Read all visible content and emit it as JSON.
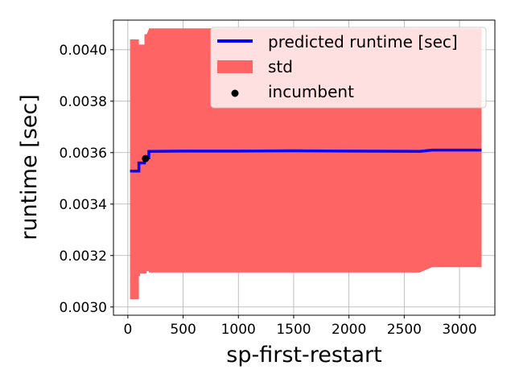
{
  "chart_data": {
    "type": "line",
    "xlabel": "sp-first-restart",
    "ylabel": "runtime [sec]",
    "xlim": [
      -130,
      3320
    ],
    "ylim": [
      0.002968,
      0.004115
    ],
    "xticks": [
      0,
      500,
      1000,
      1500,
      2000,
      2500,
      3000
    ],
    "xtick_labels": [
      "0",
      "500",
      "1000",
      "1500",
      "2000",
      "2500",
      "3000"
    ],
    "yticks": [
      0.003,
      0.0032,
      0.0034,
      0.0036,
      0.0038,
      0.004
    ],
    "ytick_labels": [
      "0.0030",
      "0.0032",
      "0.0034",
      "0.0036",
      "0.0038",
      "0.0040"
    ],
    "grid": true,
    "legend_position": "top-right",
    "series": [
      {
        "name": "predicted runtime [sec]",
        "kind": "line",
        "color": "#0000ff",
        "x": [
          20,
          100,
          100,
          150,
          150,
          190,
          190,
          500,
          1000,
          1500,
          2000,
          2640,
          2750,
          3200
        ],
        "y": [
          0.003528,
          0.003528,
          0.00356,
          0.00356,
          0.00358,
          0.00358,
          0.003605,
          0.003606,
          0.003606,
          0.003607,
          0.003606,
          0.003605,
          0.00361,
          0.00361
        ]
      },
      {
        "name": "std",
        "kind": "band",
        "color": "#ff6464",
        "x": [
          20,
          20,
          50,
          100,
          100,
          110,
          110,
          150,
          150,
          170,
          170,
          190,
          190,
          2640,
          2750,
          3200
        ],
        "upper": [
          0.004035,
          0.00404,
          0.00404,
          0.00404,
          0.00402,
          0.00402,
          0.00402,
          0.00402,
          0.00406,
          0.00406,
          0.00406,
          0.00408,
          0.004083,
          0.004083,
          0.004083,
          0.004083
        ],
        "lower": [
          0.0031,
          0.00303,
          0.00303,
          0.00303,
          0.00312,
          0.00312,
          0.00313,
          0.00313,
          0.00313,
          0.00313,
          0.00314,
          0.00314,
          0.003134,
          0.003134,
          0.003155,
          0.003155
        ]
      },
      {
        "name": "incumbent",
        "kind": "scatter",
        "color": "#000000",
        "x": [
          160
        ],
        "y": [
          0.003577
        ]
      }
    ]
  }
}
